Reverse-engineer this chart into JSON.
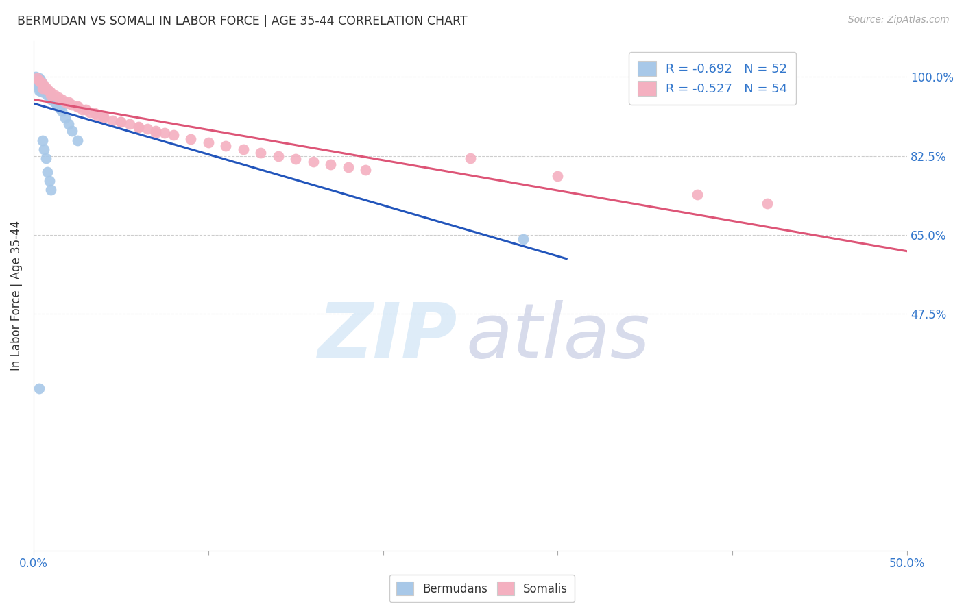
{
  "title": "BERMUDAN VS SOMALI IN LABOR FORCE | AGE 35-44 CORRELATION CHART",
  "source": "Source: ZipAtlas.com",
  "ylabel": "In Labor Force | Age 35-44",
  "xlim": [
    0.0,
    0.5
  ],
  "ylim": [
    -0.05,
    1.08
  ],
  "yticks_right": [
    1.0,
    0.825,
    0.65,
    0.475
  ],
  "ytick_labels_right": [
    "100.0%",
    "82.5%",
    "65.0%",
    "47.5%"
  ],
  "grid_color": "#c8c8c8",
  "background_color": "#ffffff",
  "bermudan_color": "#a8c8e8",
  "somali_color": "#f4b0c0",
  "bermudan_line_color": "#2255bb",
  "somali_line_color": "#dd5577",
  "bermudan_R": -0.692,
  "bermudan_N": 52,
  "somali_R": -0.527,
  "somali_N": 54,
  "bermudan_x": [
    0.001,
    0.001,
    0.002,
    0.002,
    0.002,
    0.002,
    0.002,
    0.003,
    0.003,
    0.003,
    0.003,
    0.003,
    0.003,
    0.003,
    0.004,
    0.004,
    0.004,
    0.004,
    0.004,
    0.004,
    0.005,
    0.005,
    0.005,
    0.005,
    0.006,
    0.006,
    0.006,
    0.007,
    0.007,
    0.008,
    0.008,
    0.009,
    0.01,
    0.01,
    0.011,
    0.012,
    0.013,
    0.014,
    0.015,
    0.016,
    0.018,
    0.02,
    0.022,
    0.025,
    0.005,
    0.006,
    0.007,
    0.008,
    0.009,
    0.01,
    0.28,
    0.003
  ],
  "bermudan_y": [
    0.99,
    1.0,
    0.998,
    0.995,
    0.99,
    0.985,
    0.98,
    0.998,
    0.993,
    0.99,
    0.985,
    0.98,
    0.975,
    0.97,
    0.993,
    0.988,
    0.983,
    0.978,
    0.973,
    0.968,
    0.985,
    0.98,
    0.975,
    0.97,
    0.978,
    0.972,
    0.966,
    0.972,
    0.966,
    0.965,
    0.96,
    0.958,
    0.955,
    0.95,
    0.948,
    0.944,
    0.94,
    0.935,
    0.93,
    0.925,
    0.91,
    0.895,
    0.88,
    0.86,
    0.86,
    0.84,
    0.82,
    0.79,
    0.77,
    0.75,
    0.64,
    0.31
  ],
  "somali_x": [
    0.002,
    0.003,
    0.004,
    0.005,
    0.006,
    0.007,
    0.008,
    0.009,
    0.01,
    0.012,
    0.014,
    0.016,
    0.018,
    0.02,
    0.022,
    0.025,
    0.028,
    0.032,
    0.036,
    0.04,
    0.045,
    0.05,
    0.055,
    0.06,
    0.065,
    0.07,
    0.075,
    0.08,
    0.09,
    0.1,
    0.11,
    0.12,
    0.13,
    0.14,
    0.15,
    0.16,
    0.17,
    0.18,
    0.19,
    0.005,
    0.01,
    0.015,
    0.02,
    0.025,
    0.03,
    0.035,
    0.04,
    0.05,
    0.06,
    0.07,
    0.42,
    0.38,
    0.3,
    0.25
  ],
  "somali_y": [
    0.998,
    0.992,
    0.988,
    0.985,
    0.98,
    0.976,
    0.972,
    0.968,
    0.965,
    0.96,
    0.955,
    0.95,
    0.945,
    0.942,
    0.938,
    0.933,
    0.928,
    0.922,
    0.916,
    0.91,
    0.904,
    0.9,
    0.895,
    0.89,
    0.885,
    0.88,
    0.876,
    0.872,
    0.863,
    0.855,
    0.847,
    0.84,
    0.832,
    0.825,
    0.818,
    0.812,
    0.806,
    0.8,
    0.794,
    0.975,
    0.96,
    0.95,
    0.945,
    0.935,
    0.928,
    0.92,
    0.912,
    0.9,
    0.888,
    0.876,
    0.72,
    0.74,
    0.78,
    0.82
  ]
}
